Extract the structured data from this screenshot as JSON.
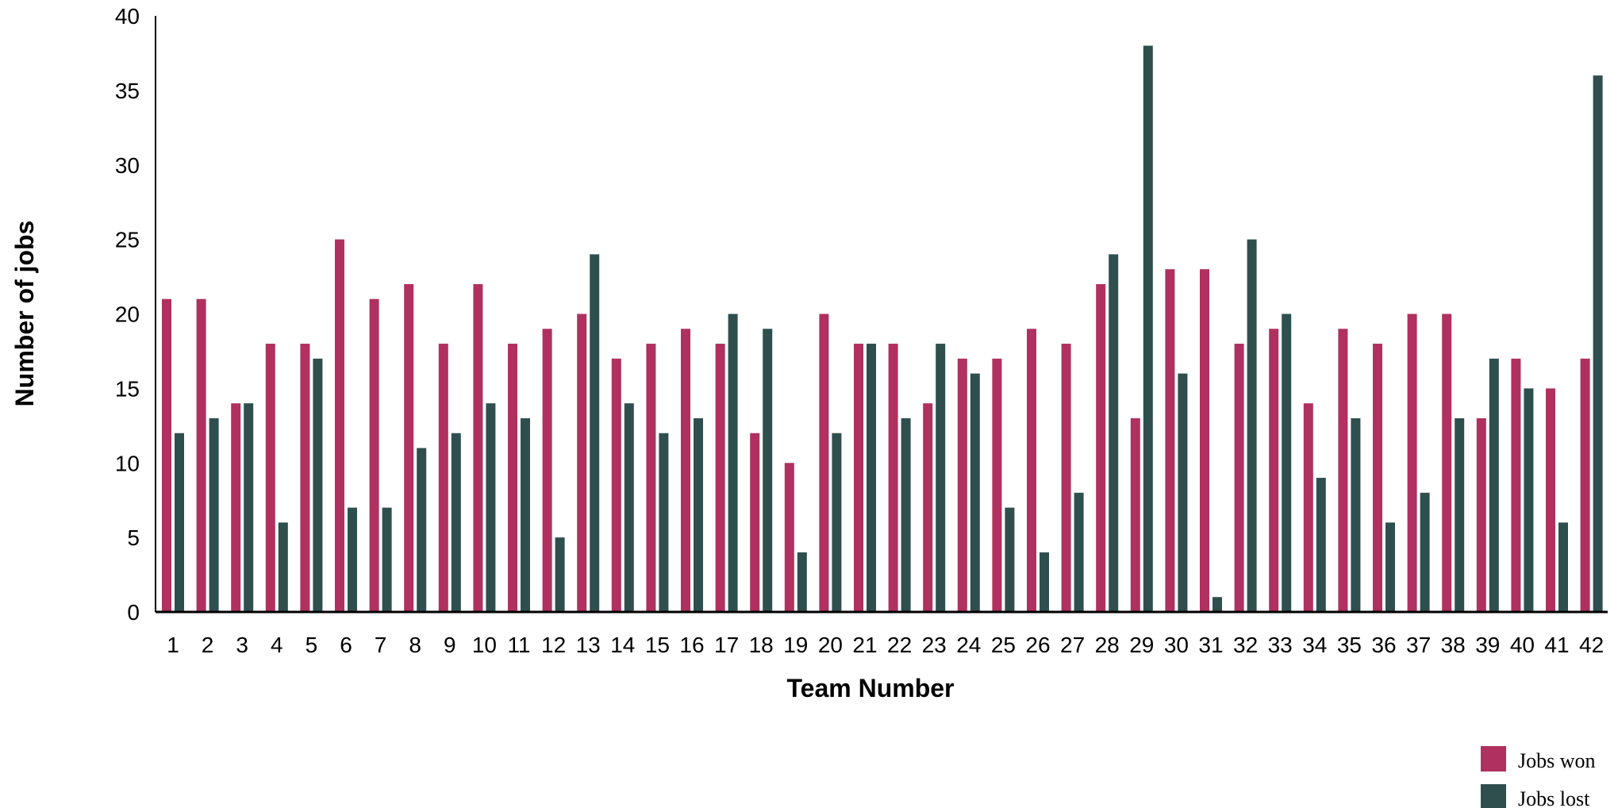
{
  "chart_data": {
    "type": "bar",
    "title": "",
    "xlabel": "Team Number",
    "ylabel": "Number of jobs",
    "ylim": [
      0,
      40
    ],
    "yticks": [
      "0",
      "5",
      "10",
      "15",
      "20",
      "25",
      "30",
      "35",
      "40"
    ],
    "grid": false,
    "legend_position": "bottom-right",
    "categories": [
      "1",
      "2",
      "3",
      "4",
      "5",
      "6",
      "7",
      "8",
      "9",
      "10",
      "11",
      "12",
      "13",
      "14",
      "15",
      "16",
      "17",
      "18",
      "19",
      "20",
      "21",
      "22",
      "23",
      "24",
      "25",
      "26",
      "27",
      "28",
      "29",
      "30",
      "31",
      "32",
      "33",
      "34",
      "35",
      "36",
      "37",
      "38",
      "39",
      "40",
      "41",
      "42"
    ],
    "series": [
      {
        "name": "Jobs won",
        "color": "#B0305F",
        "values": [
          21,
          21,
          14,
          18,
          18,
          25,
          21,
          22,
          18,
          22,
          18,
          19,
          20,
          17,
          18,
          19,
          18,
          12,
          10,
          20,
          18,
          18,
          14,
          17,
          17,
          19,
          18,
          22,
          13,
          23,
          23,
          18,
          19,
          14,
          19,
          18,
          20,
          20,
          13,
          17,
          15,
          17
        ]
      },
      {
        "name": "Jobs lost",
        "color": "#2F4F4F",
        "values": [
          12,
          13,
          14,
          6,
          17,
          7,
          7,
          11,
          12,
          14,
          13,
          5,
          24,
          14,
          12,
          13,
          20,
          19,
          4,
          12,
          18,
          13,
          18,
          16,
          7,
          4,
          8,
          24,
          38,
          16,
          1,
          25,
          20,
          9,
          13,
          6,
          8,
          13,
          17,
          15,
          6,
          36
        ]
      }
    ]
  }
}
